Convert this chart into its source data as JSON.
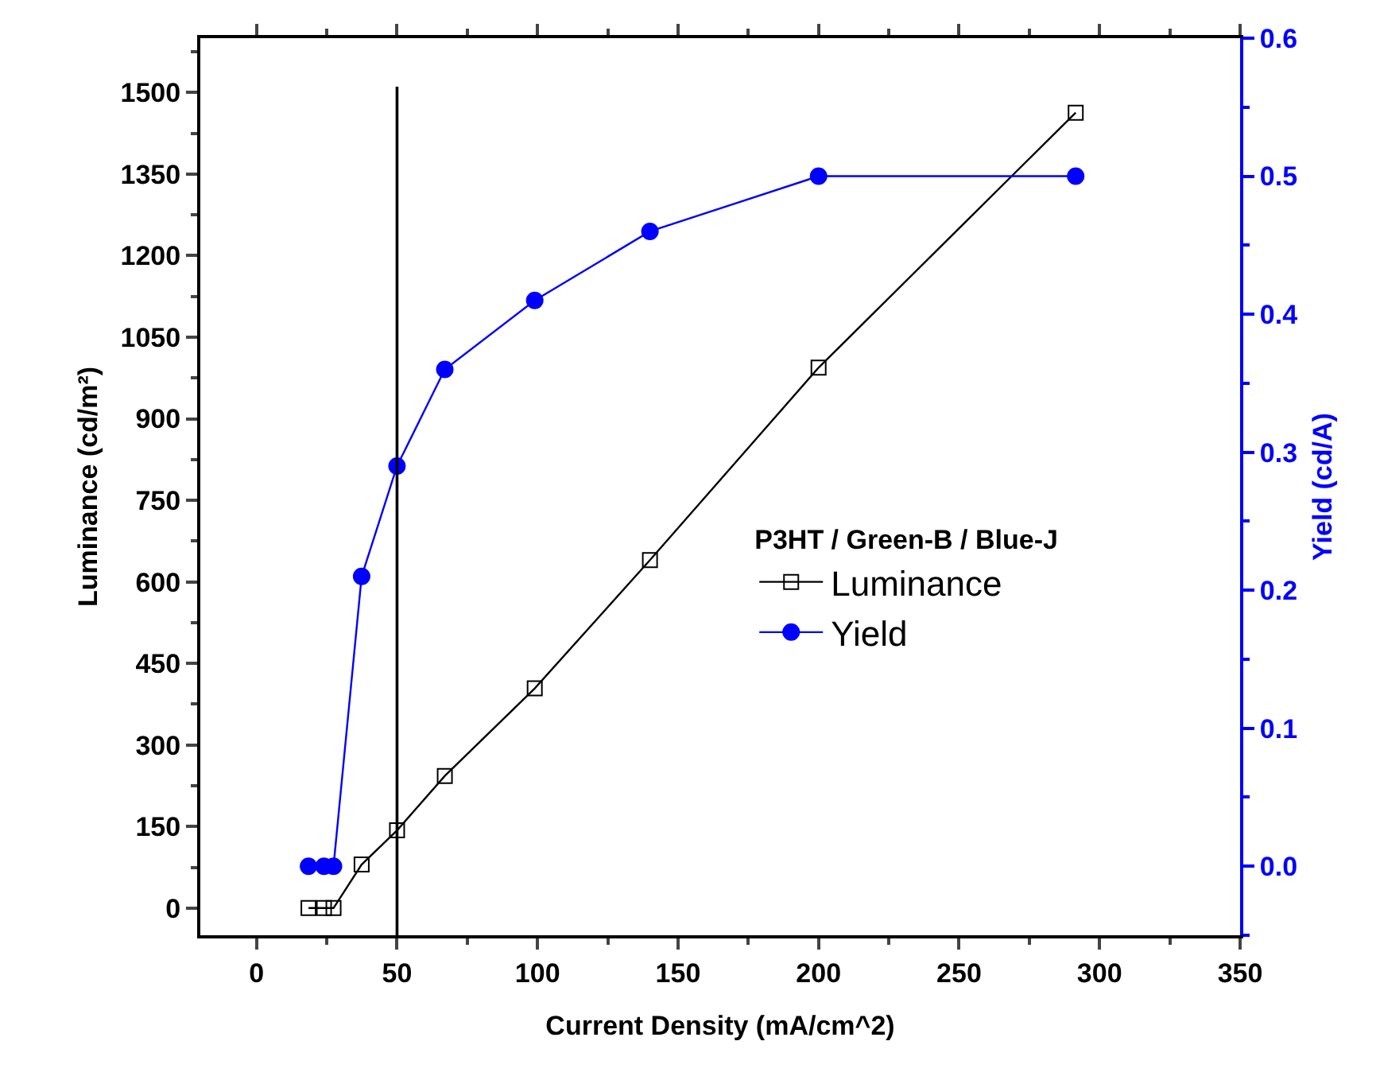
{
  "chart_data": {
    "type": "line",
    "xlabel": "Current Density (mA/cm^2)",
    "ylabel": "Luminance (cd/m²)",
    "y2label": "Yield (cd/A)",
    "legend_title": "P3HT / Green-B / Blue-J",
    "series": [
      {
        "name": "Luminance",
        "color": "#000000",
        "marker": "square",
        "x": [
          18.5,
          24,
          27.4,
          37.4,
          50,
          67,
          99,
          140,
          200,
          291.5
        ],
        "values": [
          0,
          0,
          0,
          80,
          143,
          243,
          404,
          640,
          994,
          1463
        ]
      },
      {
        "name": "Yield",
        "color": "#0000ff",
        "marker": "circle",
        "axis": "y2",
        "x": [
          18.5,
          24,
          27.4,
          37.4,
          50,
          67,
          99,
          140,
          200,
          291.5
        ],
        "values": [
          0,
          0,
          0,
          0.21,
          0.29,
          0.36,
          0.41,
          0.46,
          0.5,
          0.5
        ]
      }
    ],
    "xlim": [
      -20,
      350
    ],
    "xticks": [
      0,
      50,
      100,
      150,
      200,
      250,
      300,
      350
    ],
    "ylim": [
      -50,
      1600
    ],
    "yticks": [
      0,
      150,
      300,
      450,
      600,
      750,
      900,
      1050,
      1200,
      1350,
      1500
    ],
    "y2lim": [
      -0.05,
      0.6
    ],
    "y2ticks": [
      {
        "value": 0,
        "label": "0.0"
      },
      {
        "value": 0.1,
        "label": "0.1"
      },
      {
        "value": 0.2,
        "label": "0.2"
      },
      {
        "value": 0.3,
        "label": "0.3"
      },
      {
        "value": 0.4,
        "label": "0.4"
      },
      {
        "value": 0.5,
        "label": "0.5"
      },
      {
        "value": 0.6,
        "label": "0.6"
      }
    ],
    "ref_lines": [
      {
        "axis": "x",
        "value": 50,
        "color": "#000000"
      }
    ],
    "legend": "right",
    "line_style": "solid"
  }
}
